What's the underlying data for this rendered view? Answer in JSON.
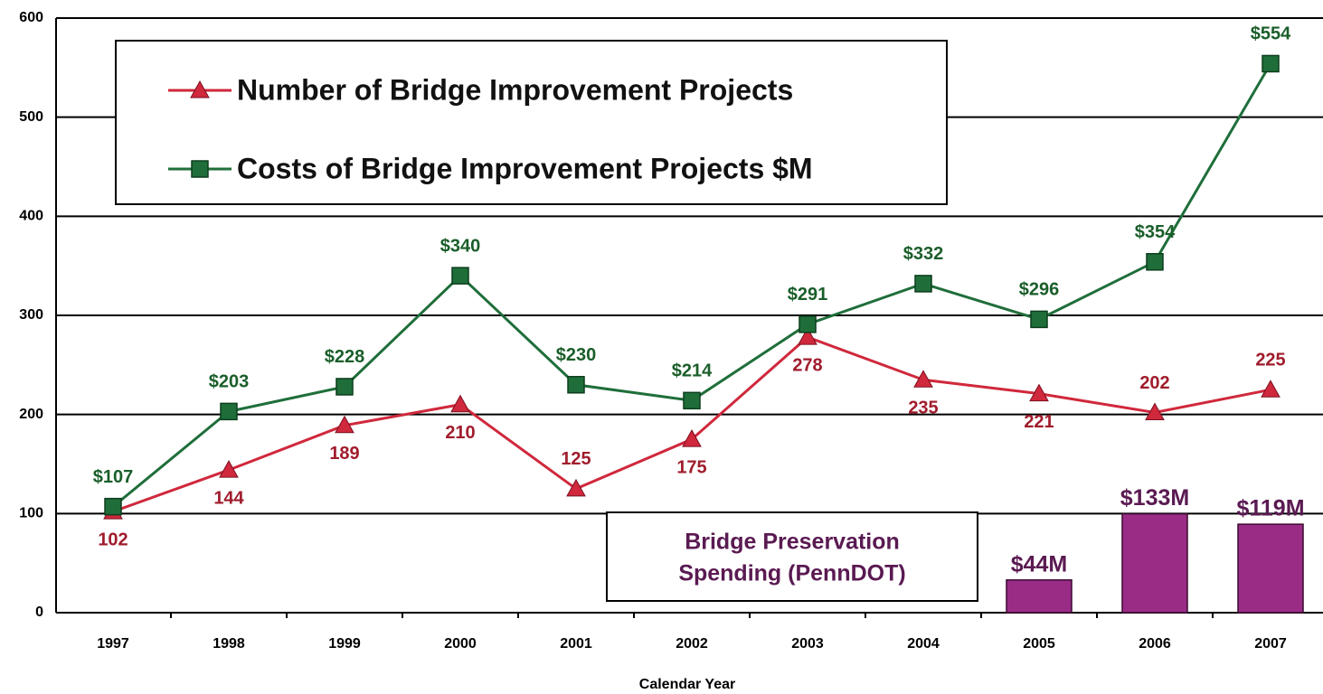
{
  "chart_data": {
    "type": "line",
    "x_label": "Calendar Year",
    "categories": [
      "1997",
      "1998",
      "1999",
      "2000",
      "2001",
      "2002",
      "2003",
      "2004",
      "2005",
      "2006",
      "2007"
    ],
    "ylim": [
      0,
      600
    ],
    "yticks": [
      0,
      100,
      200,
      300,
      400,
      500,
      600
    ],
    "grid": true,
    "y2lim": [
      0,
      800
    ],
    "series": [
      {
        "name": "Number of Bridge Improvement Projects",
        "color": "#d0283c",
        "marker": "triangle",
        "values": [
          102,
          144,
          189,
          210,
          125,
          175,
          278,
          235,
          221,
          202,
          225
        ]
      },
      {
        "name": "Costs of Bridge Improvement Projects $M",
        "color": "#1f6e3a",
        "marker": "square",
        "values": [
          107,
          203,
          228,
          340,
          230,
          214,
          291,
          332,
          296,
          354,
          554
        ],
        "value_labels": [
          "$107",
          "$203",
          "$228",
          "$340",
          "$230",
          "$214",
          "$291",
          "$332",
          "$296",
          "$354",
          "$554"
        ]
      },
      {
        "type": "bar",
        "axis": "y2",
        "color": "#9a2c86",
        "values": [
          null,
          null,
          null,
          null,
          null,
          null,
          null,
          null,
          44,
          133,
          119
        ],
        "value_labels": [
          null,
          null,
          null,
          null,
          null,
          null,
          null,
          null,
          "$44M",
          "$133M",
          "$119M"
        ]
      }
    ],
    "annotation": [
      "Bridge Preservation",
      "Spending (PennDOT)"
    ]
  }
}
